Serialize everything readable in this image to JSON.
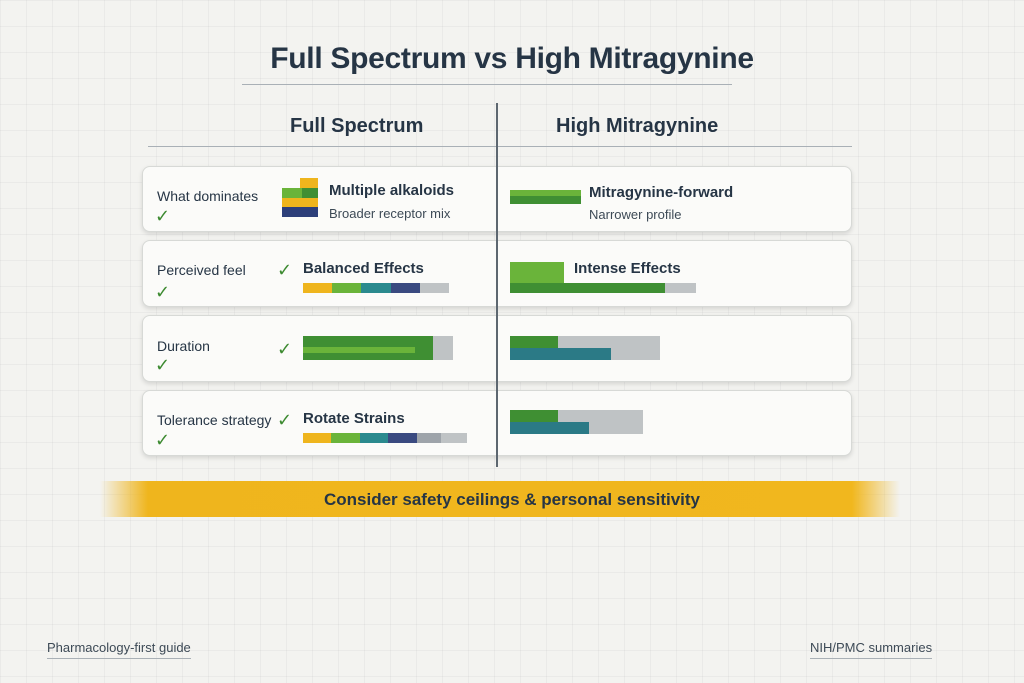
{
  "title": "Full Spectrum vs High Mitragynine",
  "columns": {
    "left": "Full Spectrum",
    "right": "High Mitragynine"
  },
  "rows": {
    "dominates": {
      "label": "What dominates",
      "left_title": "Multiple alkaloids",
      "left_sub": "Broader receptor mix",
      "right_title": "Mitragynine-forward",
      "right_sub": "Narrower profile"
    },
    "feel": {
      "label": "Perceived feel",
      "left_title": "Balanced Effects",
      "right_title": "Intense Effects"
    },
    "duration": {
      "label": "Duration"
    },
    "tolerance": {
      "label": "Tolerance strategy",
      "left_title": "Rotate Strains"
    }
  },
  "banner": "Consider safety ceilings & personal sensitivity",
  "footer": {
    "left": "Pharmacology-first guide",
    "right": "NIH/PMC summaries"
  },
  "icons": {
    "check": "checkmark-icon",
    "stack": "alkaloid-stack-icon"
  },
  "colors": {
    "green": "#3f8f33",
    "lime": "#6ab43a",
    "teal": "#2b7a86",
    "navy": "#2d3f7a",
    "yellow": "#efb51d",
    "gray": "#bfc3c5"
  }
}
